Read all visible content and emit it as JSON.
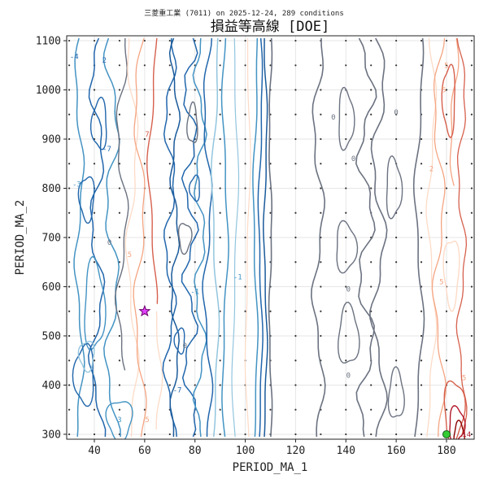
{
  "chart_data": {
    "type": "contour",
    "title": "損益等高線 [DOE]",
    "subtitle": "三菱重工業 (7011) on 2025-12-24, 289 conditions",
    "xlabel": "PERIOD_MA_1",
    "ylabel": "PERIOD_MA_2",
    "xlim": [
      29,
      191
    ],
    "ylim": [
      290,
      1110
    ],
    "xticks": [
      40,
      60,
      80,
      100,
      120,
      140,
      160,
      180
    ],
    "yticks": [
      300,
      400,
      500,
      600,
      700,
      800,
      900,
      1000,
      1100
    ],
    "grid": true,
    "sample_grid": {
      "x": [
        30,
        40,
        50,
        60,
        70,
        80,
        90,
        100,
        110,
        120,
        130,
        140,
        150,
        160,
        170,
        180,
        190
      ],
      "y": [
        300,
        350,
        400,
        450,
        500,
        550,
        600,
        650,
        700,
        750,
        800,
        850,
        900,
        950,
        1000,
        1050,
        1100
      ]
    },
    "contour_labels": [
      {
        "text": "-4",
        "x": 32,
        "y": 1068,
        "color": "#2166ac"
      },
      {
        "text": "2",
        "x": 44,
        "y": 1060,
        "color": "#2166ac"
      },
      {
        "text": "-7",
        "x": 45,
        "y": 880,
        "color": "#2166ac"
      },
      {
        "text": "-3",
        "x": 33,
        "y": 808,
        "color": "#4393c3"
      },
      {
        "text": "0",
        "x": 46,
        "y": 690,
        "color": "#6b7280"
      },
      {
        "text": "5",
        "x": 54,
        "y": 665,
        "color": "#f4a582"
      },
      {
        "text": "7",
        "x": 61,
        "y": 910,
        "color": "#d6604d"
      },
      {
        "text": "3",
        "x": 50,
        "y": 330,
        "color": "#4393c3"
      },
      {
        "text": "5",
        "x": 61,
        "y": 330,
        "color": "#f4a582"
      },
      {
        "text": "-7",
        "x": 73,
        "y": 390,
        "color": "#2166ac"
      },
      {
        "text": "-1",
        "x": 80,
        "y": 590,
        "color": "#4393c3"
      },
      {
        "text": "-1",
        "x": 97,
        "y": 620,
        "color": "#4393c3"
      },
      {
        "text": "0",
        "x": 76,
        "y": 480,
        "color": "#6b7280"
      },
      {
        "text": "0",
        "x": 135,
        "y": 945,
        "color": "#6b7280"
      },
      {
        "text": "0",
        "x": 160,
        "y": 955,
        "color": "#6b7280"
      },
      {
        "text": "0",
        "x": 143,
        "y": 860,
        "color": "#6b7280"
      },
      {
        "text": "0",
        "x": 141,
        "y": 595,
        "color": "#6b7280"
      },
      {
        "text": "0",
        "x": 141,
        "y": 420,
        "color": "#6b7280"
      },
      {
        "text": "5",
        "x": 180,
        "y": 1050,
        "color": "#f4a582"
      },
      {
        "text": "5",
        "x": 178,
        "y": 610,
        "color": "#f4a582"
      },
      {
        "text": "5",
        "x": 187,
        "y": 415,
        "color": "#f4a582"
      },
      {
        "text": "5",
        "x": 179,
        "y": 1000,
        "color": "#f4a582"
      },
      {
        "text": "2",
        "x": 174,
        "y": 840,
        "color": "#f4a582"
      },
      {
        "text": "14",
        "x": 188,
        "y": 300,
        "color": "#b2182b"
      }
    ],
    "best_marker": {
      "x": 60,
      "y": 550,
      "symbol": "star",
      "color": "#e040fb"
    },
    "current_marker": {
      "x": 180,
      "y": 300,
      "symbol": "circle",
      "color": "#33cc33"
    }
  }
}
